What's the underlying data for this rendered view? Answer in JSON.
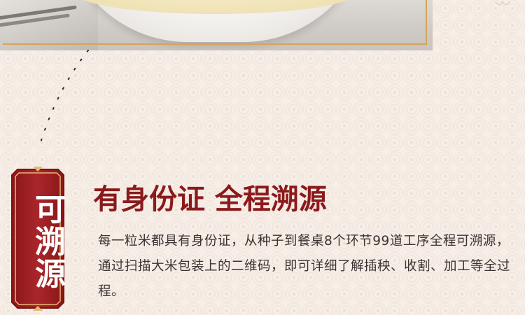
{
  "colors": {
    "background": "#f6eee7",
    "accent_red": "#8b1a1c",
    "badge_red": "#9e1e24",
    "gold": "#d3a45c",
    "text": "#3b3433"
  },
  "badge": {
    "label": "可溯源"
  },
  "heading": {
    "title": "有身份证 全程溯源"
  },
  "description": {
    "text": "每一粒米都具有身份证，从种子到餐桌8个环节99道工序全程可溯源，通过扫描大米包装上的二维码，即可详细了解插秧、收割、加工等全过程。"
  }
}
